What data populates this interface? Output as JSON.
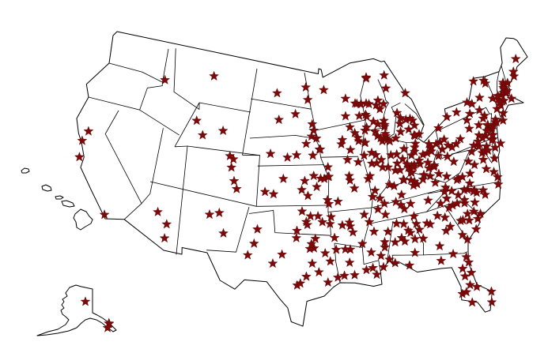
{
  "map": {
    "type": "point-marker map",
    "region": "United States",
    "marker_shape": "star",
    "colors": {
      "marker": "#7d0a0a",
      "land": "#ffffff",
      "border": "#000000",
      "background": "#ffffff"
    },
    "markers_contiguous": [
      [
        -108.9,
        47.0
      ],
      [
        -117.0,
        46.4
      ],
      [
        -108.4,
        43.0
      ],
      [
        -106.3,
        42.9
      ],
      [
        -107.2,
        41.8
      ],
      [
        -104.9,
        39.7
      ],
      [
        -104.8,
        38.8
      ],
      [
        -105.0,
        40.6
      ],
      [
        -104.7,
        40.4
      ],
      [
        -104.6,
        38.3
      ],
      [
        -121.5,
        38.6
      ],
      [
        -122.3,
        37.9
      ],
      [
        -120.7,
        35.3
      ],
      [
        -117.2,
        32.8
      ],
      [
        -112.5,
        34.5
      ],
      [
        -110.8,
        33.4
      ],
      [
        -110.9,
        32.2
      ],
      [
        -105.9,
        35.7
      ],
      [
        -106.6,
        35.1
      ],
      [
        -104.5,
        33.4
      ],
      [
        -101.8,
        35.2
      ],
      [
        -101.9,
        33.6
      ],
      [
        -102.1,
        32.0
      ],
      [
        -99.7,
        32.4
      ],
      [
        -98.5,
        33.9
      ],
      [
        -100.4,
        31.5
      ],
      [
        -96.8,
        32.8
      ],
      [
        -97.3,
        32.8
      ],
      [
        -97.1,
        33.2
      ],
      [
        -97.1,
        31.5
      ],
      [
        -97.7,
        30.3
      ],
      [
        -98.5,
        29.4
      ],
      [
        -98.2,
        29.6
      ],
      [
        -95.4,
        29.8
      ],
      [
        -94.1,
        30.1
      ],
      [
        -95.3,
        32.3
      ],
      [
        -94.0,
        33.4
      ],
      [
        -96.6,
        33.6
      ],
      [
        -96.4,
        30.7
      ],
      [
        -94.7,
        31.6
      ],
      [
        -97.5,
        35.5
      ],
      [
        -96.0,
        36.2
      ],
      [
        -98.4,
        34.6
      ],
      [
        -97.9,
        36.4
      ],
      [
        -97.0,
        36.1
      ],
      [
        -95.4,
        35.7
      ],
      [
        -97.4,
        35.2
      ],
      [
        -97.3,
        37.7
      ],
      [
        -95.7,
        39.0
      ],
      [
        -95.2,
        38.97
      ],
      [
        -94.7,
        39.1
      ],
      [
        -97.6,
        38.8
      ],
      [
        -99.3,
        38.9
      ],
      [
        -96.6,
        39.2
      ],
      [
        -96.2,
        38.4
      ],
      [
        -97.9,
        38.1
      ],
      [
        -100.0,
        37.75
      ],
      [
        -100.9,
        38.0
      ],
      [
        -94.7,
        37.4
      ],
      [
        -96.7,
        40.8
      ],
      [
        -96.0,
        41.3
      ],
      [
        -98.3,
        40.9
      ],
      [
        -99.1,
        40.7
      ],
      [
        -100.8,
        41.1
      ],
      [
        -97.4,
        42.0
      ],
      [
        -100.3,
        44.4
      ],
      [
        -96.7,
        43.5
      ],
      [
        -96.8,
        44.3
      ],
      [
        -98.5,
        45.5
      ],
      [
        -96.9,
        42.8
      ],
      [
        -100.8,
        46.8
      ],
      [
        -96.8,
        46.9
      ],
      [
        -97.0,
        47.9
      ],
      [
        -93.3,
        45.0
      ],
      [
        -93.1,
        44.95
      ],
      [
        -92.5,
        44.0
      ],
      [
        -92.1,
        46.8
      ],
      [
        -94.2,
        45.6
      ],
      [
        -94.0,
        44.2
      ],
      [
        -91.6,
        44.0
      ],
      [
        -94.9,
        47.5
      ],
      [
        -93.6,
        41.6
      ],
      [
        -91.5,
        41.7
      ],
      [
        -91.7,
        42.0
      ],
      [
        -93.6,
        42.0
      ],
      [
        -90.6,
        41.5
      ],
      [
        -90.7,
        42.5
      ],
      [
        -96.4,
        42.5
      ],
      [
        -92.3,
        42.5
      ],
      [
        -95.9,
        41.3
      ],
      [
        -93.2,
        43.15
      ],
      [
        -92.4,
        41.0
      ],
      [
        -94.6,
        39.1
      ],
      [
        -90.2,
        38.6
      ],
      [
        -92.3,
        38.95
      ],
      [
        -93.3,
        37.2
      ],
      [
        -92.2,
        38.6
      ],
      [
        -94.5,
        37.1
      ],
      [
        -89.5,
        37.3
      ],
      [
        -92.6,
        40.2
      ],
      [
        -91.8,
        37.95
      ],
      [
        -94.8,
        39.8
      ],
      [
        -92.3,
        34.7
      ],
      [
        -94.2,
        36.1
      ],
      [
        -94.4,
        35.4
      ],
      [
        -90.7,
        35.8
      ],
      [
        -92.0,
        34.2
      ],
      [
        -92.4,
        35.1
      ],
      [
        -93.05,
        34.5
      ],
      [
        -90.1,
        29.95
      ],
      [
        -91.1,
        30.45
      ],
      [
        -93.75,
        32.5
      ],
      [
        -92.0,
        30.2
      ],
      [
        -92.1,
        32.5
      ],
      [
        -93.2,
        30.2
      ],
      [
        -92.4,
        31.3
      ],
      [
        -90.5,
        30.5
      ],
      [
        -92.6,
        32.5
      ],
      [
        -90.2,
        32.3
      ],
      [
        -89.3,
        31.3
      ],
      [
        -89.5,
        34.4
      ],
      [
        -88.8,
        33.45
      ],
      [
        -88.7,
        34.25
      ],
      [
        -89.1,
        30.4
      ],
      [
        -88.7,
        32.4
      ],
      [
        -91.0,
        33.4
      ],
      [
        -86.8,
        33.5
      ],
      [
        -86.3,
        32.4
      ],
      [
        -86.6,
        34.7
      ],
      [
        -88.0,
        30.7
      ],
      [
        -87.6,
        33.2
      ],
      [
        -85.5,
        32.6
      ],
      [
        -85.4,
        31.2
      ],
      [
        -87.7,
        34.8
      ],
      [
        -86.0,
        34.0
      ],
      [
        -85.8,
        33.65
      ],
      [
        -84.4,
        33.75
      ],
      [
        -83.4,
        33.95
      ],
      [
        -83.6,
        32.8
      ],
      [
        -81.1,
        32.1
      ],
      [
        -82.0,
        33.5
      ],
      [
        -85.0,
        32.5
      ],
      [
        -84.2,
        31.6
      ],
      [
        -83.3,
        30.8
      ],
      [
        -85.2,
        34.3
      ],
      [
        -84.55,
        33.95
      ],
      [
        -83.8,
        34.3
      ],
      [
        -81.8,
        32.45
      ],
      [
        -85.1,
        33.6
      ],
      [
        -83.2,
        33.1
      ],
      [
        -81.65,
        30.3
      ],
      [
        -84.3,
        30.45
      ],
      [
        -82.3,
        29.65
      ],
      [
        -81.4,
        28.5
      ],
      [
        -82.5,
        27.95
      ],
      [
        -81.95,
        28.05
      ],
      [
        -87.2,
        30.4
      ],
      [
        -80.2,
        25.8
      ],
      [
        -80.1,
        26.7
      ],
      [
        -81.0,
        29.2
      ],
      [
        -80.6,
        28.1
      ],
      [
        -82.1,
        29.2
      ],
      [
        -85.7,
        30.2
      ],
      [
        -81.9,
        26.6
      ],
      [
        -81.3,
        29.9
      ],
      [
        -81.0,
        34.0
      ],
      [
        -79.9,
        32.8
      ],
      [
        -82.4,
        34.85
      ],
      [
        -81.9,
        34.95
      ],
      [
        -82.8,
        34.7
      ],
      [
        -79.8,
        34.2
      ],
      [
        -81.0,
        34.9
      ],
      [
        -78.9,
        33.7
      ],
      [
        -81.7,
        33.55
      ],
      [
        -80.85,
        33.5
      ],
      [
        -80.8,
        35.2
      ],
      [
        -78.6,
        35.8
      ],
      [
        -78.9,
        36.0
      ],
      [
        -79.05,
        35.9
      ],
      [
        -79.8,
        36.1
      ],
      [
        -80.25,
        36.1
      ],
      [
        -82.55,
        35.6
      ],
      [
        -77.9,
        34.2
      ],
      [
        -77.4,
        35.6
      ],
      [
        -78.9,
        35.05
      ],
      [
        -81.7,
        36.2
      ],
      [
        -81.3,
        35.7
      ],
      [
        -76.2,
        36.3
      ],
      [
        -77.8,
        35.95
      ],
      [
        -83.2,
        35.3
      ],
      [
        -86.8,
        36.2
      ],
      [
        -90.0,
        35.15
      ],
      [
        -83.9,
        35.95
      ],
      [
        -85.3,
        35.05
      ],
      [
        -86.4,
        35.85
      ],
      [
        -82.35,
        36.3
      ],
      [
        -88.8,
        35.6
      ],
      [
        -87.35,
        36.5
      ],
      [
        -85.5,
        36.15
      ],
      [
        -88.85,
        36.3
      ],
      [
        -85.75,
        38.25
      ],
      [
        -84.5,
        38.05
      ],
      [
        -86.45,
        37.0
      ],
      [
        -84.87,
        38.2
      ],
      [
        -84.3,
        37.75
      ],
      [
        -83.4,
        38.2
      ],
      [
        -88.3,
        36.6
      ],
      [
        -87.1,
        37.8
      ],
      [
        -88.6,
        37.1
      ],
      [
        -82.5,
        37.5
      ],
      [
        -84.45,
        39.03
      ],
      [
        -84.77,
        37.65
      ],
      [
        -77.45,
        37.55
      ],
      [
        -76.3,
        36.85
      ],
      [
        -78.5,
        38.03
      ],
      [
        -80.4,
        37.2
      ],
      [
        -79.95,
        37.27
      ],
      [
        -78.87,
        38.45
      ],
      [
        -79.15,
        37.4
      ],
      [
        -77.3,
        38.85
      ],
      [
        -76.7,
        37.27
      ],
      [
        -77.46,
        38.3
      ],
      [
        -78.16,
        39.18
      ],
      [
        -80.57,
        37.13
      ],
      [
        -82.0,
        36.7
      ],
      [
        -79.4,
        36.6
      ],
      [
        -81.6,
        38.35
      ],
      [
        -79.95,
        39.63
      ],
      [
        -82.45,
        38.42
      ],
      [
        -81.2,
        37.78
      ],
      [
        -81.55,
        39.27
      ],
      [
        -80.7,
        40.07
      ],
      [
        -79.85,
        38.92
      ],
      [
        -76.6,
        39.3
      ],
      [
        -77.0,
        38.9
      ],
      [
        -76.94,
        38.99
      ],
      [
        -76.5,
        38.98
      ],
      [
        -77.4,
        39.4
      ],
      [
        -75.6,
        38.36
      ],
      [
        -75.5,
        39.16
      ],
      [
        -75.55,
        39.74
      ],
      [
        -75.75,
        39.68
      ],
      [
        -77.7,
        39.64
      ],
      [
        -75.15,
        39.95
      ],
      [
        -80.0,
        40.44
      ],
      [
        -76.88,
        40.27
      ],
      [
        -77.86,
        40.79
      ],
      [
        -80.08,
        42.13
      ],
      [
        -75.66,
        41.4
      ],
      [
        -75.47,
        40.6
      ],
      [
        -76.3,
        40.04
      ],
      [
        -75.93,
        40.34
      ],
      [
        -76.73,
        39.96
      ],
      [
        -78.4,
        40.5
      ],
      [
        -78.92,
        40.33
      ],
      [
        -77.0,
        41.24
      ],
      [
        -79.15,
        40.62
      ],
      [
        -75.37,
        40.62
      ],
      [
        -75.88,
        41.25
      ],
      [
        -77.23,
        39.83
      ],
      [
        -80.05,
        41.06
      ],
      [
        -79.38,
        41.2
      ],
      [
        -76.45,
        41.0
      ],
      [
        -74.17,
        40.73
      ],
      [
        -74.76,
        40.22
      ],
      [
        -74.66,
        40.35
      ],
      [
        -74.45,
        40.5
      ],
      [
        -75.12,
        39.93
      ],
      [
        -74.42,
        39.36
      ],
      [
        -74.17,
        40.92
      ],
      [
        -74.0,
        40.71
      ],
      [
        -73.76,
        42.65
      ],
      [
        -78.88,
        42.89
      ],
      [
        -77.61,
        43.16
      ],
      [
        -76.15,
        43.05
      ],
      [
        -76.5,
        42.44
      ],
      [
        -75.92,
        42.1
      ],
      [
        -75.23,
        43.1
      ],
      [
        -73.45,
        44.7
      ],
      [
        -73.1,
        40.8
      ],
      [
        -73.93,
        41.7
      ],
      [
        -76.51,
        43.46
      ],
      [
        -74.98,
        44.67
      ],
      [
        -76.8,
        42.09
      ],
      [
        -71.06,
        42.36
      ],
      [
        -71.8,
        42.26
      ],
      [
        -71.1,
        42.37
      ],
      [
        -71.32,
        42.63
      ],
      [
        -71.4,
        41.82
      ],
      [
        -72.68,
        41.76
      ],
      [
        -72.93,
        41.31
      ],
      [
        -72.59,
        42.1
      ],
      [
        -72.52,
        42.37
      ],
      [
        -73.21,
        44.48
      ],
      [
        -71.46,
        42.99
      ],
      [
        -71.54,
        43.2
      ],
      [
        -70.93,
        43.13
      ],
      [
        -70.26,
        43.66
      ],
      [
        -68.67,
        44.9
      ],
      [
        -70.2,
        44.1
      ],
      [
        -71.47,
        42.77
      ],
      [
        -70.9,
        42.52
      ],
      [
        -70.67,
        41.96
      ],
      [
        -72.25,
        41.81
      ],
      [
        -83.0,
        39.96
      ],
      [
        -81.7,
        41.5
      ],
      [
        -84.5,
        39.1
      ],
      [
        -83.55,
        41.65
      ],
      [
        -84.2,
        39.76
      ],
      [
        -81.5,
        41.08
      ],
      [
        -82.1,
        39.33
      ],
      [
        -84.75,
        39.5
      ],
      [
        -81.36,
        41.15
      ],
      [
        -83.65,
        41.37
      ],
      [
        -80.65,
        41.1
      ],
      [
        -81.38,
        40.8
      ],
      [
        -81.94,
        40.8
      ],
      [
        -83.07,
        40.3
      ],
      [
        -84.1,
        40.74
      ],
      [
        -82.52,
        40.76
      ],
      [
        -81.45,
        39.42
      ],
      [
        -83.0,
        38.73
      ],
      [
        -82.0,
        39.94
      ],
      [
        -83.65,
        41.04
      ],
      [
        -83.81,
        39.92
      ],
      [
        -83.93,
        39.7
      ],
      [
        -86.16,
        39.77
      ],
      [
        -86.53,
        39.17
      ],
      [
        -86.91,
        40.43
      ],
      [
        -85.14,
        41.08
      ],
      [
        -86.25,
        41.68
      ],
      [
        -85.39,
        40.19
      ],
      [
        -87.41,
        39.47
      ],
      [
        -87.57,
        37.97
      ],
      [
        -87.35,
        41.6
      ],
      [
        -84.89,
        39.83
      ],
      [
        -86.13,
        40.49
      ],
      [
        -87.06,
        41.47
      ],
      [
        -85.92,
        39.2
      ],
      [
        -85.82,
        38.29
      ],
      [
        -87.63,
        41.88
      ],
      [
        -87.69,
        42.05
      ],
      [
        -88.24,
        40.11
      ],
      [
        -89.65,
        39.8
      ],
      [
        -89.59,
        40.69
      ],
      [
        -88.99,
        40.51
      ],
      [
        -88.75,
        41.93
      ],
      [
        -89.22,
        37.73
      ],
      [
        -89.09,
        42.27
      ],
      [
        -90.67,
        40.46
      ],
      [
        -88.18,
        39.49
      ],
      [
        -89.95,
        38.81
      ],
      [
        -91.4,
        39.94
      ],
      [
        -88.08,
        41.52
      ],
      [
        -88.32,
        41.76
      ],
      [
        -88.95,
        39.84
      ],
      [
        -90.52,
        41.51
      ],
      [
        -83.05,
        42.33
      ],
      [
        -83.74,
        42.28
      ],
      [
        -84.48,
        42.74
      ],
      [
        -85.67,
        42.96
      ],
      [
        -85.59,
        42.29
      ],
      [
        -83.69,
        43.01
      ],
      [
        -83.95,
        43.42
      ],
      [
        -84.77,
        43.6
      ],
      [
        -87.4,
        46.55
      ],
      [
        -88.57,
        47.12
      ],
      [
        -85.62,
        44.76
      ],
      [
        -83.61,
        42.24
      ],
      [
        -84.25,
        43.62
      ],
      [
        -85.48,
        43.7
      ],
      [
        -84.35,
        46.5
      ],
      [
        -89.4,
        43.07
      ],
      [
        -87.9,
        43.04
      ],
      [
        -88.02,
        44.52
      ],
      [
        -91.24,
        43.8
      ],
      [
        -91.5,
        44.81
      ],
      [
        -88.54,
        44.02
      ],
      [
        -89.57,
        44.52
      ],
      [
        -88.73,
        42.83
      ],
      [
        -92.1,
        46.72
      ],
      [
        -90.48,
        42.73
      ],
      [
        -91.93,
        44.88
      ],
      [
        -92.62,
        44.86
      ],
      [
        -87.82,
        42.58
      ],
      [
        -87.78,
        42.73
      ],
      [
        -89.63,
        44.96
      ]
    ],
    "markers_alaska": [
      [
        -147.7,
        64.8
      ],
      [
        -134.4,
        58.3
      ],
      [
        -134.6,
        58.4
      ],
      [
        -135.3,
        57.05
      ]
    ]
  }
}
